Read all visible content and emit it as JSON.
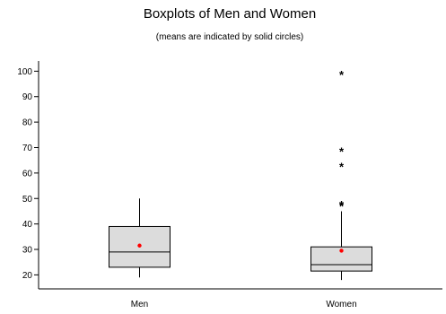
{
  "chart_data": {
    "type": "boxplot",
    "title": "Boxplots of Men and Women",
    "subtitle": "(means are indicated by solid circles)",
    "xlabel": "",
    "ylabel": "",
    "ylim": [
      14.5,
      104
    ],
    "yticks": [
      20,
      30,
      40,
      50,
      60,
      70,
      80,
      90,
      100
    ],
    "grid": false,
    "categories": [
      "Men",
      "Women"
    ],
    "boxes": [
      {
        "name": "Men",
        "whisker_low": 19,
        "q1": 23,
        "median": 29,
        "q3": 39,
        "whisker_high": 50,
        "mean": 31.5,
        "outliers": []
      },
      {
        "name": "Women",
        "whisker_low": 18,
        "q1": 21.5,
        "median": 24,
        "q3": 31,
        "whisker_high": 45,
        "mean": 29.5,
        "outliers": [
          47.5,
          48,
          63,
          69,
          99
        ]
      }
    ],
    "colors": {
      "box_fill": "#dcdcdc",
      "box_stroke": "#000000",
      "mean_marker": "#ff0000",
      "outlier_marker": "#000000"
    },
    "markers": {
      "mean": "solid-circle",
      "outlier": "asterisk"
    }
  }
}
